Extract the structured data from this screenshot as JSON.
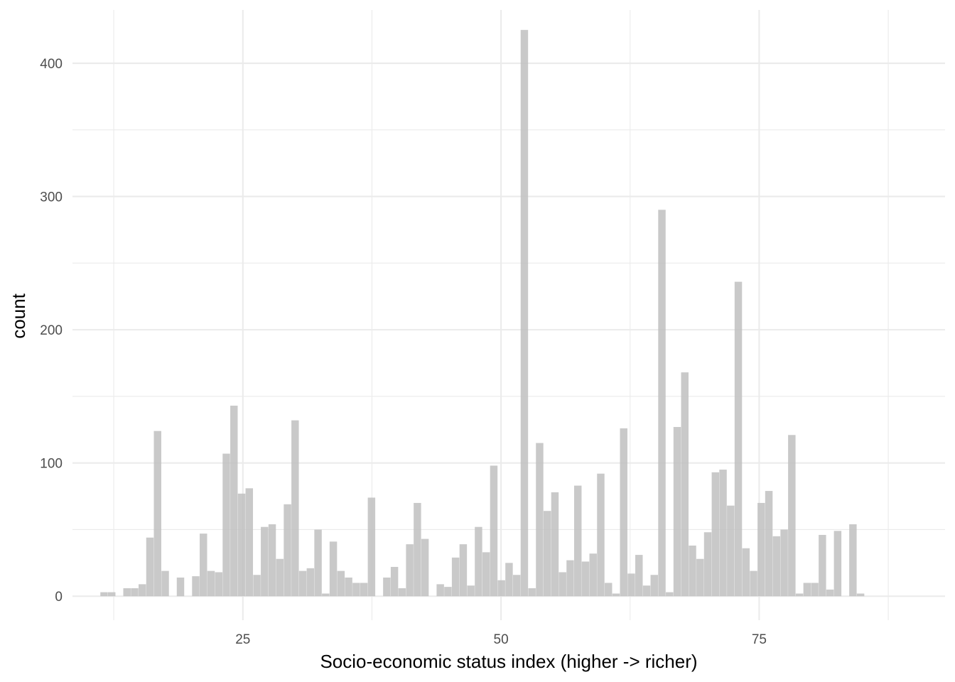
{
  "chart_data": {
    "type": "bar",
    "subtype": "histogram",
    "xlabel": "Socio-economic status index (higher -> richer)",
    "ylabel": "count",
    "xlim": [
      8.5,
      93
    ],
    "ylim": [
      -18,
      440
    ],
    "x_ticks": [
      25,
      50,
      75
    ],
    "x_tick_labels": [
      "25",
      "50",
      "75"
    ],
    "x_minor_ticks": [
      12.5,
      37.5,
      62.5,
      87.5
    ],
    "y_ticks": [
      0,
      100,
      200,
      300,
      400
    ],
    "y_tick_labels": [
      "0",
      "100",
      "200",
      "300",
      "400"
    ],
    "y_minor_ticks": [
      50,
      150,
      250,
      350
    ],
    "grid": true,
    "bar_color": "#bfbfbf",
    "bin_width": 0.74,
    "bin_start": 11.2,
    "values": [
      3,
      3,
      0,
      6,
      6,
      9,
      44,
      124,
      19,
      0,
      14,
      0,
      15,
      47,
      19,
      18,
      107,
      143,
      77,
      81,
      16,
      52,
      54,
      28,
      69,
      132,
      19,
      21,
      50,
      2,
      41,
      19,
      14,
      10,
      10,
      74,
      0,
      14,
      22,
      6,
      39,
      70,
      43,
      0,
      9,
      7,
      29,
      39,
      8,
      52,
      33,
      98,
      12,
      25,
      16,
      425,
      6,
      115,
      64,
      78,
      18,
      27,
      83,
      26,
      32,
      92,
      10,
      2,
      126,
      17,
      31,
      8,
      16,
      290,
      3,
      127,
      168,
      38,
      28,
      48,
      93,
      95,
      68,
      236,
      36,
      19,
      70,
      79,
      45,
      50,
      121,
      2,
      10,
      10,
      46,
      5,
      49,
      0,
      54,
      2
    ]
  }
}
